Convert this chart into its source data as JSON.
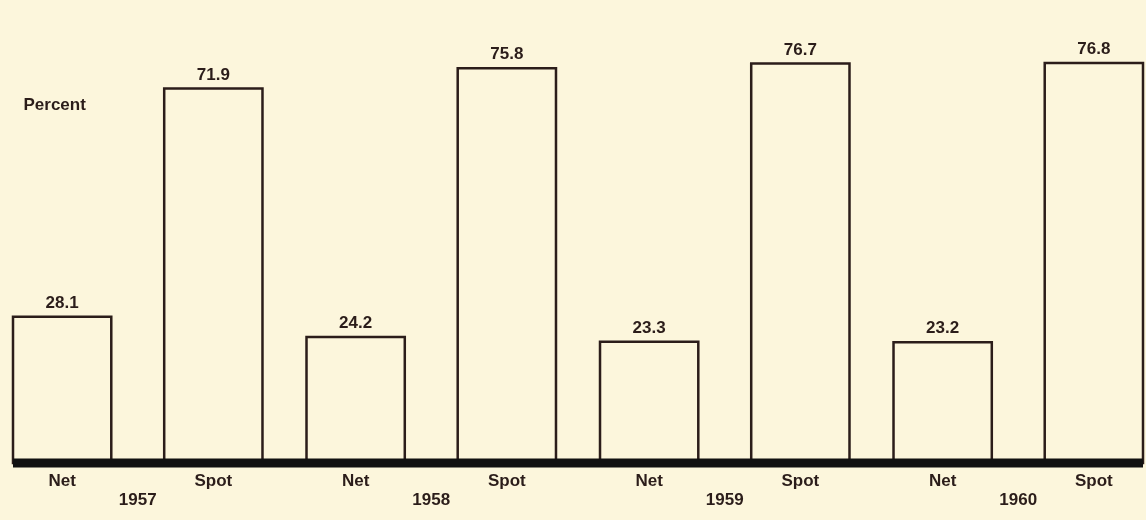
{
  "chart_data": {
    "type": "bar",
    "ylabel": "Percent",
    "categories": [
      "1957",
      "1958",
      "1959",
      "1960"
    ],
    "series": [
      {
        "name": "Net",
        "color": "#2b1d1a",
        "values": [
          28.1,
          24.2,
          23.3,
          23.2
        ]
      },
      {
        "name": "Spot",
        "color": "#2b1d1a",
        "values": [
          71.9,
          75.8,
          76.7,
          76.8
        ]
      }
    ],
    "data_labels": true,
    "grid": false
  }
}
